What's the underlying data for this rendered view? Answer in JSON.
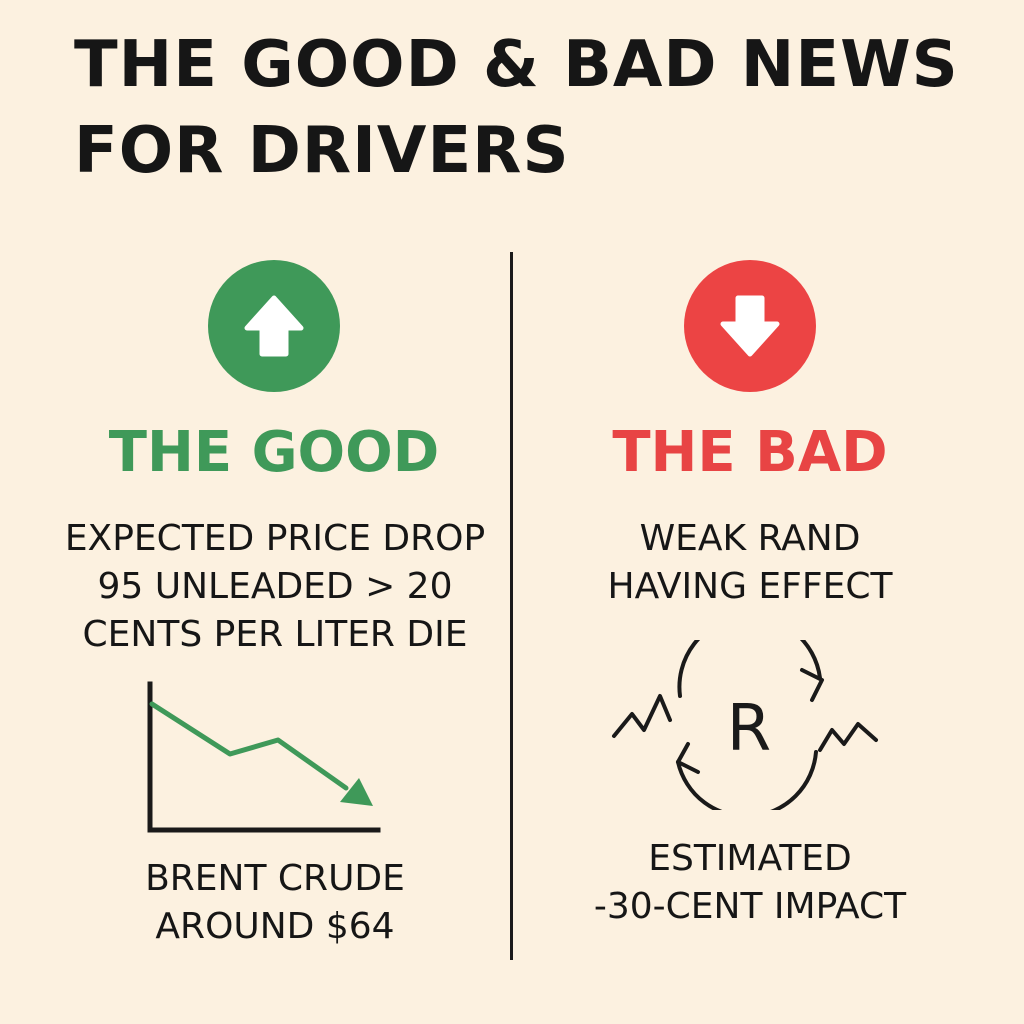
{
  "title": {
    "line1": "THE GOOD & BAD NEWS",
    "line2": "FOR DRIVERS"
  },
  "good": {
    "heading": "THE GOOD",
    "icon": "arrow-up-icon",
    "color": "#3f9959",
    "description": [
      "EXPECTED PRICE DROP",
      "95 UNLEADED > 20",
      "CENTS PER LITER DIE"
    ],
    "footer": [
      "BRENT CRUDE",
      "AROUND $64"
    ]
  },
  "bad": {
    "heading": "THE BAD",
    "icon": "arrow-down-icon",
    "color": "#ec4444",
    "description": [
      "WEAK RAND",
      "HAVING EFFECT"
    ],
    "currency_symbol": "R",
    "footer": [
      "ESTIMATED",
      "-30-CENT IMPACT"
    ]
  }
}
